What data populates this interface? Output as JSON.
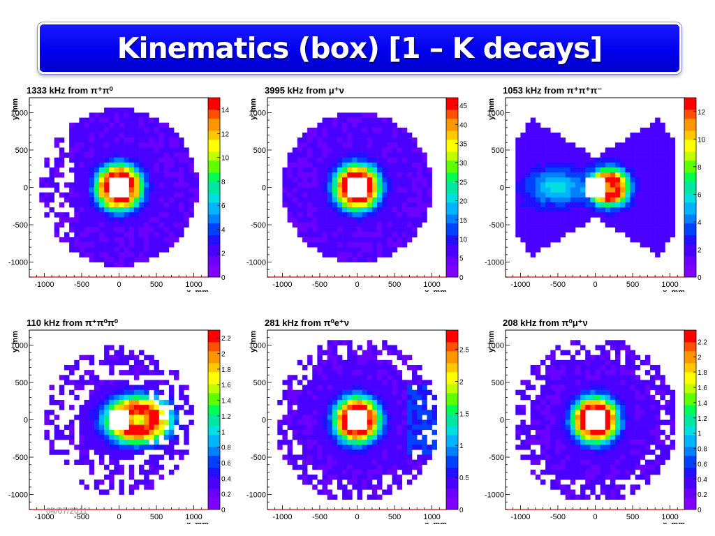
{
  "slide": {
    "title": "Kinematics (box) [1 – K decays]",
    "footer_date": "04/07/2011"
  },
  "palette": [
    "#7f00ff",
    "#6a00ff",
    "#4a00ff",
    "#2010ff",
    "#0040ff",
    "#0080ff",
    "#00b4ff",
    "#00e0e0",
    "#00e8a0",
    "#00ff50",
    "#60ff00",
    "#c0ff00",
    "#ffff00",
    "#ffc800",
    "#ff9600",
    "#ff5000",
    "#ff0000"
  ],
  "chart_data": [
    {
      "type": "heatmap",
      "title": "1333 kHz from π⁺π⁰",
      "xlabel": "x, mm",
      "ylabel": "y, mm",
      "xlim": [
        -1200,
        1200
      ],
      "ylim": [
        -1200,
        1200
      ],
      "x_ticks": [
        "-1000",
        "-500",
        "0",
        "500",
        "1000"
      ],
      "y_ticks": [
        "1000",
        "500",
        "0",
        "-500",
        "-1000"
      ],
      "z_ticks": [
        "14",
        "12",
        "10",
        "8",
        "6",
        "4",
        "2",
        "0"
      ],
      "zmax": 15,
      "peak": 15,
      "center_x": 0,
      "center_y": 0,
      "hole_x": [
        -150,
        120
      ],
      "hole_y": [
        -140,
        110
      ],
      "footprint": "circle",
      "radius": 1050,
      "sparse_side": "left"
    },
    {
      "type": "heatmap",
      "title": "3995 kHz from μ⁺ν",
      "xlabel": "x, mm",
      "ylabel": "y, mm",
      "xlim": [
        -1200,
        1200
      ],
      "ylim": [
        -1200,
        1200
      ],
      "x_ticks": [
        "-1000",
        "-500",
        "0",
        "500",
        "1000"
      ],
      "y_ticks": [
        "1000",
        "500",
        "0",
        "-500",
        "-1000"
      ],
      "z_ticks": [
        "45",
        "40",
        "35",
        "30",
        "25",
        "20",
        "15",
        "10",
        "5",
        "0"
      ],
      "zmax": 47,
      "peak": 47,
      "center_x": 0,
      "center_y": 0,
      "hole_x": [
        -150,
        120
      ],
      "hole_y": [
        -140,
        110
      ],
      "footprint": "circle",
      "radius": 1000,
      "sparse_side": "none"
    },
    {
      "type": "heatmap",
      "title": "1053 kHz from π⁺π⁺π⁻",
      "xlabel": "x, mm",
      "ylabel": "y, mm",
      "xlim": [
        -1200,
        1200
      ],
      "ylim": [
        -1200,
        1200
      ],
      "x_ticks": [
        "-1000",
        "-500",
        "0",
        "500",
        "1000"
      ],
      "y_ticks": [
        "1000",
        "500",
        "0",
        "-500",
        "-1000"
      ],
      "z_ticks": [
        "12",
        "10",
        "8",
        "6",
        "4",
        "2",
        "0"
      ],
      "zmax": 13,
      "peak": 13,
      "center_x": 170,
      "center_y": 0,
      "hole_x": [
        -150,
        120
      ],
      "hole_y": [
        -140,
        110
      ],
      "footprint": "bowtie",
      "radius": 1100,
      "sparse_side": "none"
    },
    {
      "type": "heatmap",
      "title": "110 kHz from π⁺π⁰π⁰",
      "xlabel": "x, mm",
      "ylabel": "y, mm",
      "xlim": [
        -1200,
        1200
      ],
      "ylim": [
        -1200,
        1200
      ],
      "x_ticks": [
        "-1000",
        "-500",
        "0",
        "500",
        "1000"
      ],
      "y_ticks": [
        "1000",
        "500",
        "0",
        "-500",
        "-1000"
      ],
      "z_ticks": [
        "2.2",
        "2",
        "1.8",
        "1.6",
        "1.4",
        "1.2",
        "1",
        "0.8",
        "0.6",
        "0.4",
        "0.2",
        "0"
      ],
      "zmax": 2.3,
      "peak": 2.3,
      "center_x": 250,
      "center_y": 0,
      "hole_x": [
        -150,
        120
      ],
      "hole_y": [
        -140,
        110
      ],
      "footprint": "circle",
      "radius": 1000,
      "sparse_side": "all"
    },
    {
      "type": "heatmap",
      "title": "281 kHz from π⁰e⁺ν",
      "xlabel": "x, mm",
      "ylabel": "y, mm",
      "xlim": [
        -1200,
        1200
      ],
      "ylim": [
        -1200,
        1200
      ],
      "x_ticks": [
        "-1000",
        "-500",
        "0",
        "500",
        "1000"
      ],
      "y_ticks": [
        "1000",
        "500",
        "0",
        "-500",
        "-1000"
      ],
      "z_ticks": [
        "2.5",
        "2",
        "1.5",
        "1",
        "0.5",
        "0"
      ],
      "zmax": 2.8,
      "peak": 2.8,
      "center_x": 0,
      "center_y": 0,
      "hole_x": [
        -150,
        120
      ],
      "hole_y": [
        -140,
        110
      ],
      "footprint": "circle",
      "radius": 1100,
      "sparse_side": "edge"
    },
    {
      "type": "heatmap",
      "title": "208 kHz from π⁰μ⁺ν",
      "xlabel": "x, mm",
      "ylabel": "y, mm",
      "xlim": [
        -1200,
        1200
      ],
      "ylim": [
        -1200,
        1200
      ],
      "x_ticks": [
        "-1000",
        "-500",
        "0",
        "500",
        "1000"
      ],
      "y_ticks": [
        "1000",
        "500",
        "0",
        "-500",
        "-1000"
      ],
      "z_ticks": [
        "2.2",
        "2",
        "1.8",
        "1.6",
        "1.4",
        "1.2",
        "1",
        "0.8",
        "0.6",
        "0.4",
        "0.2",
        "0"
      ],
      "zmax": 2.35,
      "peak": 2.35,
      "center_x": 0,
      "center_y": 0,
      "hole_x": [
        -150,
        120
      ],
      "hole_y": [
        -140,
        110
      ],
      "footprint": "circle",
      "radius": 1100,
      "sparse_side": "edge"
    }
  ]
}
